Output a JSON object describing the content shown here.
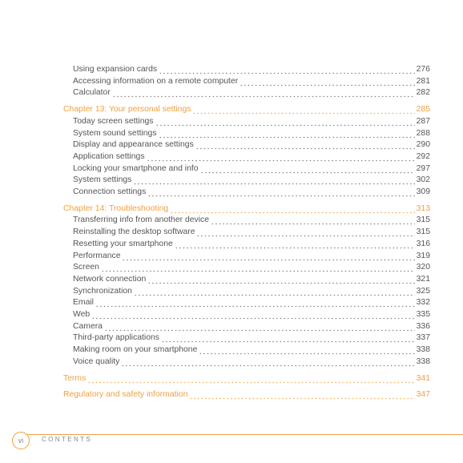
{
  "toc": {
    "continued_entries": [
      {
        "title": "Using expansion cards",
        "page": "276"
      },
      {
        "title": "Accessing information on a remote computer",
        "page": "281"
      },
      {
        "title": "Calculator",
        "page": "282"
      }
    ],
    "chapters": [
      {
        "title": "Chapter 13:  Your personal settings",
        "page": "285",
        "entries": [
          {
            "title": "Today screen settings",
            "page": "287"
          },
          {
            "title": "System sound settings",
            "page": "288"
          },
          {
            "title": "Display and appearance settings",
            "page": "290"
          },
          {
            "title": "Application settings",
            "page": "292"
          },
          {
            "title": "Locking your smartphone and info",
            "page": "297"
          },
          {
            "title": "System settings",
            "page": "302"
          },
          {
            "title": "Connection settings",
            "page": "309"
          }
        ]
      },
      {
        "title": "Chapter 14:  Troubleshooting",
        "page": "313",
        "entries": [
          {
            "title": "Transferring info from another device",
            "page": "315"
          },
          {
            "title": "Reinstalling the desktop software",
            "page": "315"
          },
          {
            "title": "Resetting your smartphone",
            "page": "316"
          },
          {
            "title": "Performance",
            "page": "319"
          },
          {
            "title": "Screen",
            "page": "320"
          },
          {
            "title": "Network connection",
            "page": "321"
          },
          {
            "title": "Synchronization",
            "page": "325"
          },
          {
            "title": "Email",
            "page": "332"
          },
          {
            "title": "Web",
            "page": "335"
          },
          {
            "title": "Camera",
            "page": "336"
          },
          {
            "title": "Third-party applications",
            "page": "337"
          },
          {
            "title": "Making room on your smartphone",
            "page": "338"
          },
          {
            "title": "Voice quality",
            "page": "338"
          }
        ]
      },
      {
        "title": "Terms",
        "page": "341",
        "entries": []
      },
      {
        "title": "Regulatory and safety information",
        "page": "347",
        "entries": []
      }
    ]
  },
  "footer": {
    "page_number": "vi",
    "label": "CONTENTS"
  }
}
